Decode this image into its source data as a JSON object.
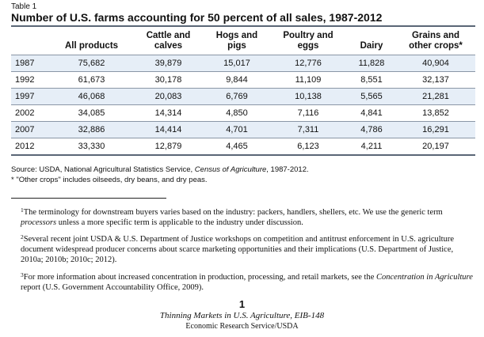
{
  "table": {
    "label": "Table 1",
    "title": "Number of U.S. farms accounting for 50 percent of all sales, 1987-2012",
    "columns": [
      "",
      "All products",
      "Cattle and\ncalves",
      "Hogs and\npigs",
      "Poultry and\neggs",
      "Dairy",
      "Grains and\nother crops*"
    ],
    "rows": [
      [
        "1987",
        "75,682",
        "39,879",
        "15,017",
        "12,776",
        "11,828",
        "40,904"
      ],
      [
        "1992",
        "61,673",
        "30,178",
        "9,844",
        "11,109",
        "8,551",
        "32,137"
      ],
      [
        "1997",
        "46,068",
        "20,083",
        "6,769",
        "10,138",
        "5,565",
        "21,281"
      ],
      [
        "2002",
        "34,085",
        "14,314",
        "4,850",
        "7,116",
        "4,841",
        "13,852"
      ],
      [
        "2007",
        "32,886",
        "14,414",
        "4,701",
        "7,311",
        "4,786",
        "16,291"
      ],
      [
        "2012",
        "33,330",
        "12,879",
        "4,465",
        "6,123",
        "4,211",
        "20,197"
      ]
    ],
    "shaded_row_color": "#e6eef7",
    "source_prefix": "Source: USDA, National Agricultural Statistics Service, ",
    "source_italic": "Census of Agriculture",
    "source_suffix": ", 1987-2012.",
    "other_crops_note": "* \"Other crops\" includes oilseeds, dry beans, and dry peas."
  },
  "footnotes": [
    {
      "number": "1",
      "parts": [
        {
          "text": "The terminology for downstream buyers varies based on the industry: packers, handlers, shellers, etc. We use the generic term ",
          "italic": false
        },
        {
          "text": "processors",
          "italic": true
        },
        {
          "text": " unless a more specific term is applicable to the industry under discussion.",
          "italic": false
        }
      ]
    },
    {
      "number": "2",
      "parts": [
        {
          "text": "Several recent joint USDA & U.S. Department of Justice workshops on competition and antitrust enforcement in U.S. agriculture document widespread producer concerns about scarce marketing opportunities and their implications (U.S. Department of Justice, 2010a; 2010b; 2010c; 2012).",
          "italic": false
        }
      ]
    },
    {
      "number": "3",
      "parts": [
        {
          "text": "For more information about increased concentration in production, processing, and retail markets, see the ",
          "italic": false
        },
        {
          "text": "Concentration in Agriculture",
          "italic": true
        },
        {
          "text": " report (U.S. Government Accountability Office, 2009).",
          "italic": false
        }
      ]
    }
  ],
  "footer": {
    "page_number": "1",
    "publication": "Thinning Markets in U.S. Agriculture, EIB-148",
    "publisher": "Economic Research Service/USDA"
  }
}
